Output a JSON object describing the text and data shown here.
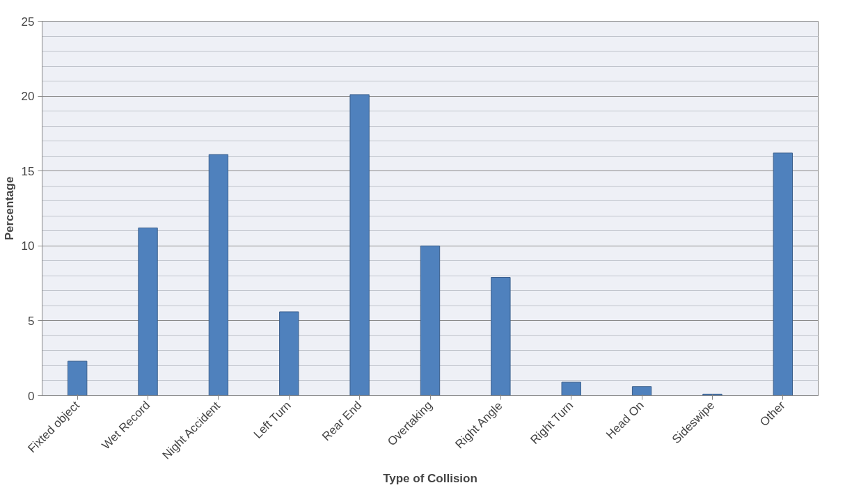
{
  "chart_data": {
    "type": "bar",
    "xlabel": "Type of Collision",
    "ylabel": "Percentage",
    "categories": [
      "Fixted object",
      "Wet Record",
      "Night Accident",
      "Left Turn",
      "Rear End",
      "Overtaking",
      "Right Angle",
      "Right Turn",
      "Head On",
      "Sideswipe",
      "Other"
    ],
    "values": [
      2.3,
      11.2,
      16.1,
      5.6,
      20.1,
      10.0,
      7.9,
      0.9,
      0.6,
      0.1,
      16.2
    ],
    "color": "#4f81bd",
    "ylim": [
      0,
      25
    ],
    "yticks": [
      0,
      5,
      10,
      15,
      20,
      25
    ],
    "grid": "y"
  }
}
